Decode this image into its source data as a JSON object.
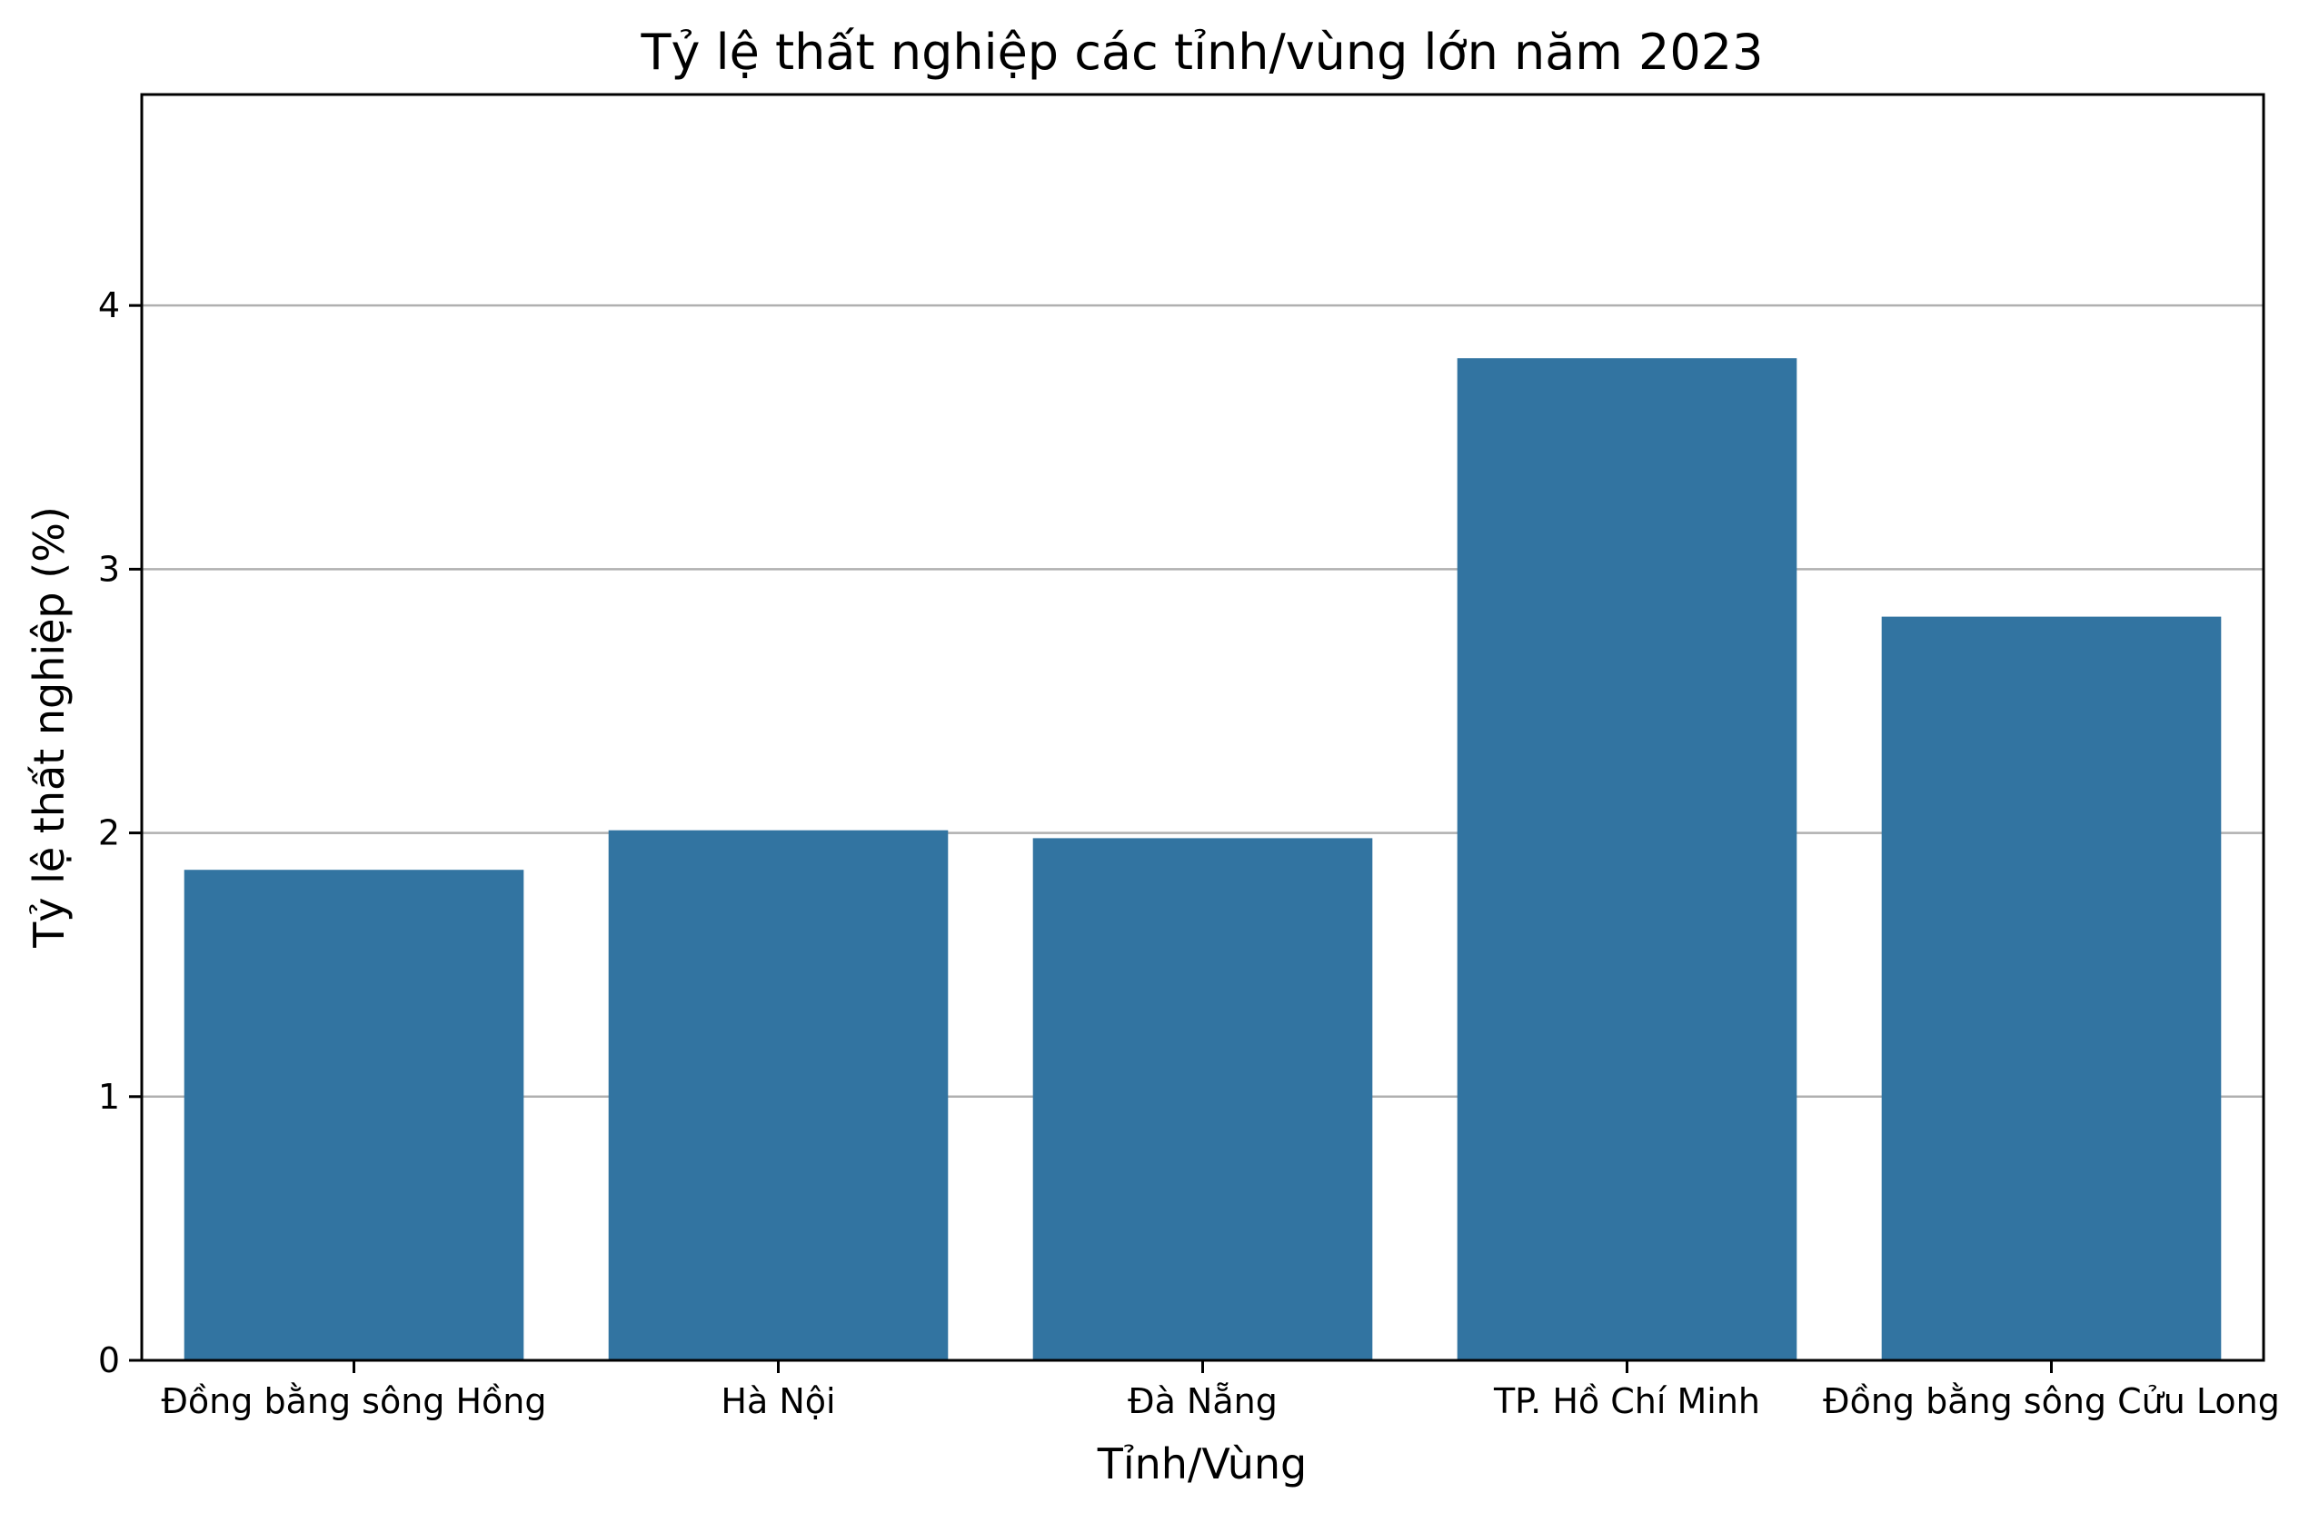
{
  "chart_data": {
    "type": "bar",
    "title": "Tỷ lệ thất nghiệp các tỉnh/vùng lớn năm 2023",
    "xlabel": "Tỉnh/Vùng",
    "ylabel": "Tỷ lệ thất nghiệp (%)",
    "categories": [
      "Đồng bằng sông Hồng",
      "Hà Nội",
      "Đà Nẵng",
      "TP. Hồ Chí Minh",
      "Đồng bằng sông Cửu Long"
    ],
    "values": [
      1.86,
      2.01,
      1.98,
      3.8,
      2.82
    ],
    "ylim": [
      0,
      4.8
    ],
    "yticks": [
      0,
      1,
      2,
      3,
      4
    ],
    "grid": "y-axis only",
    "legend": "none",
    "bar_color": "#3274a1"
  }
}
